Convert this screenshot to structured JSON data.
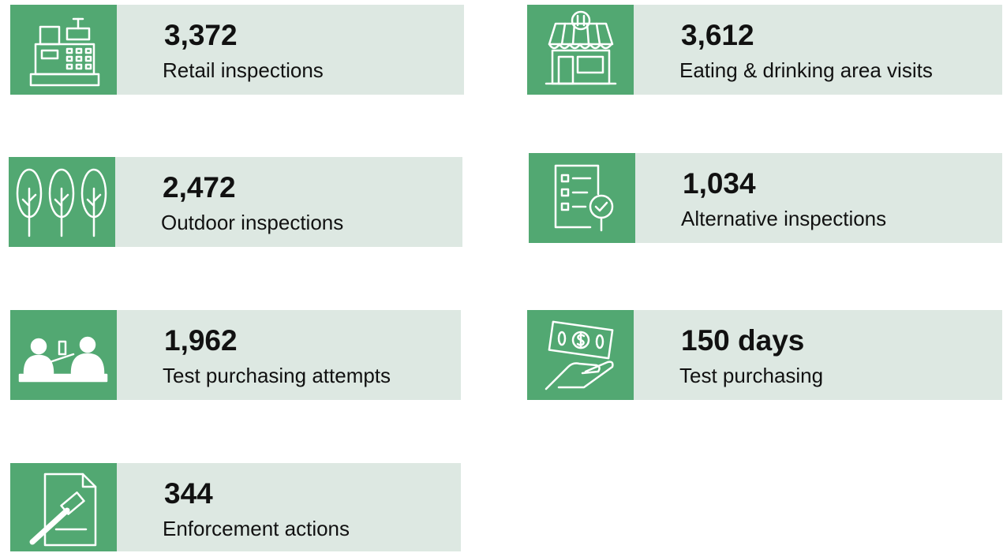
{
  "cards": [
    {
      "value": "3,372",
      "label": "Retail inspections"
    },
    {
      "value": "3,612",
      "label": "Eating & drinking area visits"
    },
    {
      "value": "2,472",
      "label": "Outdoor inspections"
    },
    {
      "value": "1,034",
      "label": "Alternative inspections"
    },
    {
      "value": "1,962",
      "label": "Test purchasing attempts"
    },
    {
      "value": "150 days",
      "label": "Test purchasing"
    },
    {
      "value": "344",
      "label": "Enforcement actions"
    }
  ]
}
